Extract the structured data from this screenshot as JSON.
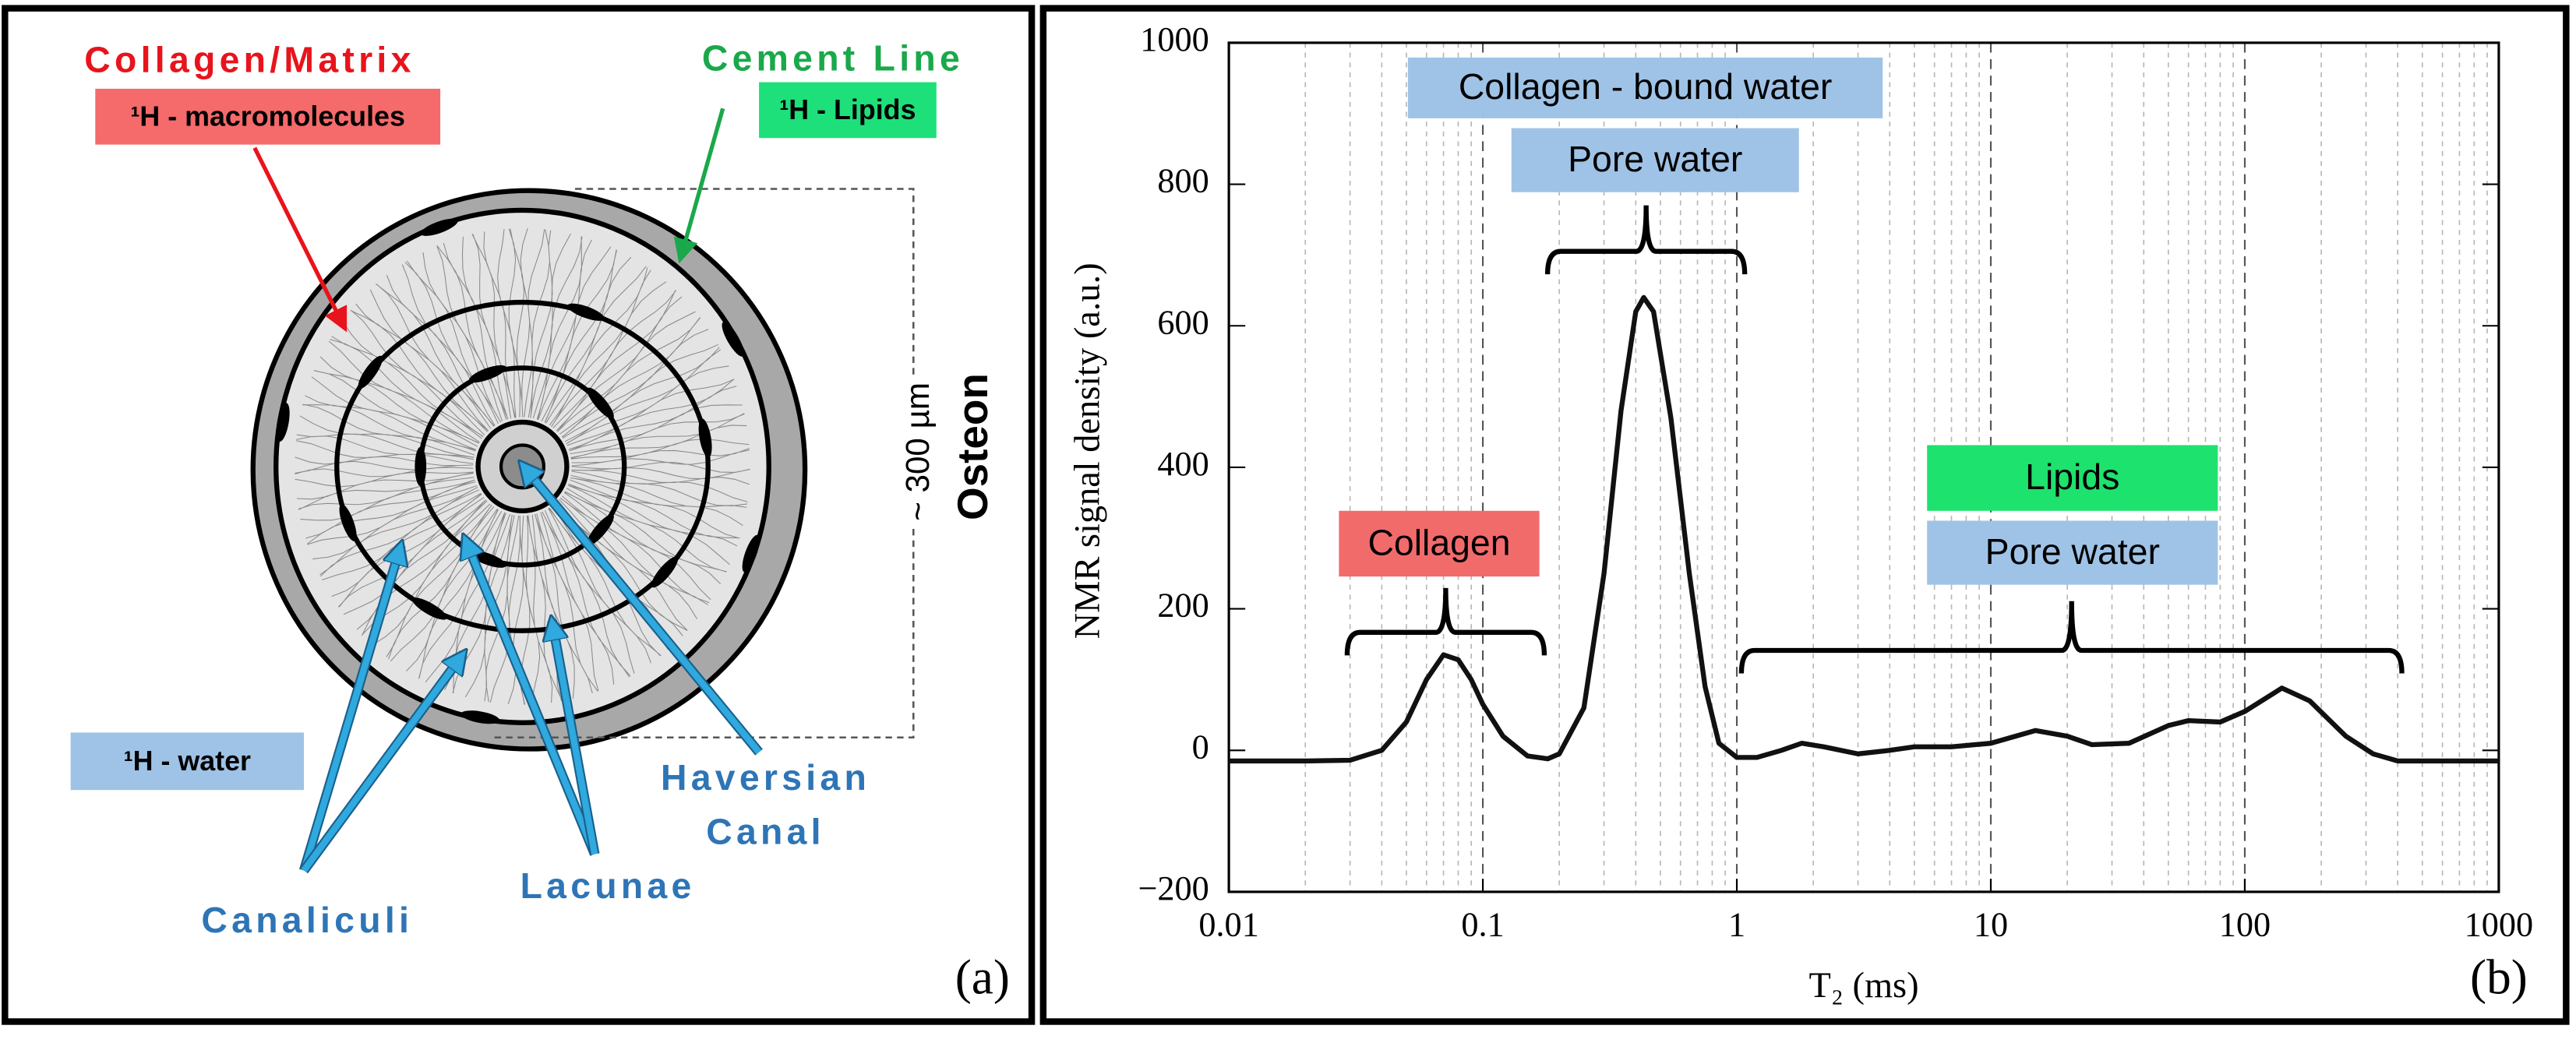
{
  "diagram": {
    "collagen_matrix": {
      "title": "Collagen/Matrix",
      "tag": "¹H - macromolecules"
    },
    "cement_line": {
      "title": "Cement Line",
      "tag": "¹H - Lipids"
    },
    "water_tag": "¹H - water",
    "scale": "~ 300 µm",
    "osteon": "Osteon",
    "haversian_canal": [
      "Haversian",
      "Canal"
    ],
    "lacunae": "Lacunae",
    "canaliculi": "Canaliculi",
    "panel_label": "(a)"
  },
  "chart_data": {
    "type": "line",
    "x_label": "T₂ (ms)",
    "y_label": "NMR signal density (a.u.)",
    "panel_label": "(b)",
    "log_x": true,
    "grid": true,
    "color": "#111111",
    "xlim": [
      0.01,
      1000
    ],
    "xticks": [
      0.01,
      0.1,
      1,
      10,
      100,
      1000
    ],
    "ylim": [
      -200,
      1000
    ],
    "yticks": [
      {
        "value": -200,
        "label": "−200"
      },
      0,
      200,
      400,
      600,
      800,
      1000
    ],
    "annotations": [
      "Collagen - bound water",
      "Pore water",
      "Collagen",
      "Lipids",
      "Pore water"
    ],
    "x": [
      0.01,
      0.02,
      0.03,
      0.04,
      0.05,
      0.06,
      0.07,
      0.08,
      0.09,
      0.1,
      0.12,
      0.15,
      0.18,
      0.2,
      0.25,
      0.3,
      0.35,
      0.4,
      0.43,
      0.47,
      0.55,
      0.65,
      0.75,
      0.85,
      1,
      1.2,
      1.5,
      1.8,
      2.2,
      3,
      4,
      5,
      7,
      10,
      15,
      20,
      25,
      35,
      50,
      60,
      80,
      100,
      140,
      180,
      250,
      320,
      400,
      600,
      1000
    ],
    "values": [
      -15,
      -15,
      -14,
      0,
      40,
      100,
      135,
      128,
      100,
      65,
      20,
      -8,
      -12,
      -5,
      60,
      250,
      480,
      620,
      640,
      620,
      470,
      250,
      90,
      10,
      -10,
      -10,
      0,
      10,
      5,
      -5,
      0,
      5,
      5,
      10,
      28,
      20,
      8,
      10,
      35,
      42,
      40,
      55,
      88,
      70,
      20,
      -5,
      -15,
      -15,
      -15
    ]
  }
}
